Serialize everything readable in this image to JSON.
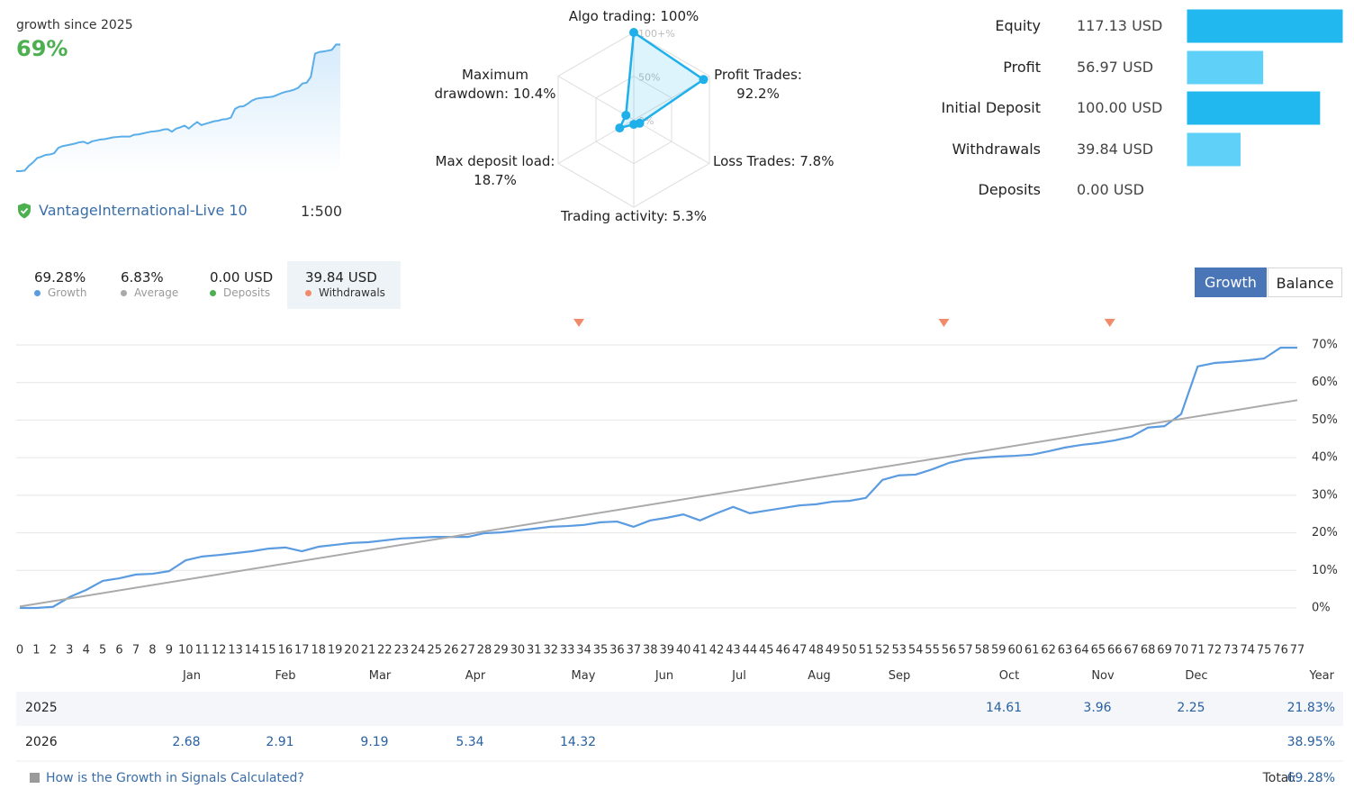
{
  "header": {
    "growth_label": "growth since 2025",
    "growth_value": "69%",
    "account": "VantageInternational-Live 10",
    "leverage": "1:500"
  },
  "stats": [
    {
      "value": "69.28%",
      "label": "Growth",
      "color": "#5b9be0"
    },
    {
      "value": "6.83%",
      "label": "Average",
      "color": "#aaaaaa"
    },
    {
      "value": "0.00 USD",
      "label": "Deposits",
      "color": "#4caf50"
    },
    {
      "value": "39.84 USD",
      "label": "Withdrawals",
      "color": "#f08c6c",
      "selected": true
    }
  ],
  "toggle": [
    {
      "label": "Growth",
      "selected": true
    },
    {
      "label": "Balance",
      "selected": false
    }
  ],
  "chart_data": [
    {
      "type": "radar",
      "categories": [
        "Algo trading: 100%",
        "Profit Trades: 92.2%",
        "Loss Trades: 7.8%",
        "Trading activity: 5.3%",
        "Max deposit load: 18.7%",
        "Maximum drawdown: 10.4%"
      ],
      "values": [
        100,
        92.2,
        7.8,
        5.3,
        18.7,
        10.4
      ],
      "color": "#1fb0ea",
      "rlim": [
        0,
        100
      ],
      "rticks": [
        {
          "value": 100,
          "label": "100+%"
        },
        {
          "value": 50,
          "label": "50%"
        },
        {
          "value": 0,
          "label": "0%"
        }
      ]
    },
    {
      "type": "hbar",
      "categories": [
        "Equity",
        "Profit",
        "Initial Deposit",
        "Withdrawals",
        "Deposits"
      ],
      "values": [
        117.13,
        56.97,
        100,
        39.84,
        0
      ],
      "value_labels": [
        "117.13 USD",
        "56.97 USD",
        "100.00 USD",
        "39.84 USD",
        "0.00 USD"
      ],
      "colors": [
        "#21b8ef",
        "#5fd0f7",
        "#21b8ef",
        "#5fd0f7",
        "#a9d8ee"
      ]
    },
    {
      "type": "line",
      "x": [
        0,
        1,
        2,
        3,
        4,
        5,
        6,
        7,
        8,
        9,
        10,
        11,
        12,
        13,
        14,
        15,
        16,
        17,
        18,
        19,
        20,
        21,
        22,
        23,
        24,
        25,
        26,
        27,
        28,
        29,
        30,
        31,
        32,
        33,
        34,
        35,
        36,
        37,
        38,
        39,
        40,
        41,
        42,
        43,
        44,
        45,
        46,
        47,
        48,
        49,
        50,
        51,
        52,
        53,
        54,
        55,
        56,
        57,
        58,
        59,
        60,
        61,
        62,
        63,
        64,
        65,
        66,
        67,
        68,
        69,
        70,
        71,
        72,
        73,
        74,
        75,
        76,
        77
      ],
      "xlim": [
        0,
        77
      ],
      "xticks": [
        0,
        1,
        2,
        3,
        4,
        5,
        6,
        7,
        8,
        9,
        10,
        11,
        12,
        13,
        14,
        15,
        16,
        17,
        18,
        19,
        20,
        21,
        22,
        23,
        24,
        25,
        26,
        27,
        28,
        29,
        30,
        31,
        32,
        33,
        34,
        35,
        36,
        37,
        38,
        39,
        40,
        41,
        42,
        43,
        44,
        45,
        46,
        47,
        48,
        49,
        50,
        51,
        52,
        53,
        54,
        55,
        56,
        57,
        58,
        59,
        60,
        61,
        62,
        63,
        64,
        65,
        66,
        67,
        68,
        69,
        70,
        71,
        72,
        73,
        74,
        75,
        76,
        77
      ],
      "ylim": [
        0,
        70
      ],
      "yticks": [
        {
          "value": 0,
          "label": "0%"
        },
        {
          "value": 10,
          "label": "10%"
        },
        {
          "value": 20,
          "label": "20%"
        },
        {
          "value": 30,
          "label": "30%"
        },
        {
          "value": 40,
          "label": "40%"
        },
        {
          "value": 50,
          "label": "50%"
        },
        {
          "value": 60,
          "label": "60%"
        },
        {
          "value": 70,
          "label": "70%"
        }
      ],
      "grid": true,
      "series": [
        {
          "name": "Growth",
          "color": "#5b9be0",
          "values": [
            0,
            0,
            0.3,
            2.9,
            4.8,
            7.2,
            7.9,
            8.9,
            9.1,
            9.8,
            12.7,
            13.7,
            14.1,
            14.6,
            15.1,
            15.8,
            16.1,
            15.1,
            16.3,
            16.8,
            17.3,
            17.5,
            18.0,
            18.5,
            18.7,
            18.9,
            18.9,
            18.9,
            19.9,
            20.1,
            20.6,
            21.1,
            21.6,
            21.8,
            22.1,
            22.8,
            23.0,
            21.6,
            23.3,
            24.0,
            24.9,
            23.3,
            25.2,
            26.9,
            25.2,
            25.9,
            26.6,
            27.3,
            27.6,
            28.3,
            28.5,
            29.3,
            34.1,
            35.3,
            35.5,
            36.9,
            38.6,
            39.6,
            40.0,
            40.3,
            40.5,
            40.8,
            41.7,
            42.7,
            43.4,
            43.9,
            44.6,
            45.6,
            48.0,
            48.4,
            51.6,
            64.3,
            65.2,
            65.5,
            65.9,
            66.4,
            69.3,
            69.28
          ]
        },
        {
          "name": "Average",
          "color": "#aaaaaa",
          "x": [
            0,
            77
          ],
          "values": [
            0.4,
            55.3
          ]
        }
      ],
      "markers": {
        "name": "Withdrawals",
        "color": "#f08c6c",
        "x": [
          33.7,
          55.7,
          65.7
        ]
      }
    }
  ],
  "table": {
    "header": [
      "Jan",
      "Feb",
      "Mar",
      "Apr",
      "May",
      "Jun",
      "Jul",
      "Aug",
      "Sep",
      "Oct",
      "Nov",
      "Dec",
      "Year"
    ],
    "rows": [
      {
        "year": "2025",
        "cells": [
          null,
          null,
          null,
          null,
          null,
          null,
          null,
          null,
          null,
          "14.61",
          "3.96",
          "2.25",
          "21.83%"
        ]
      },
      {
        "year": "2026",
        "cells": [
          "2.68",
          "2.91",
          "9.19",
          "5.34",
          "14.32",
          null,
          null,
          null,
          null,
          null,
          null,
          null,
          "38.95%"
        ]
      }
    ]
  },
  "footer": {
    "link": "How is the Growth in Signals Calculated?",
    "total_label": "Total:",
    "total_value": "69.28%"
  }
}
